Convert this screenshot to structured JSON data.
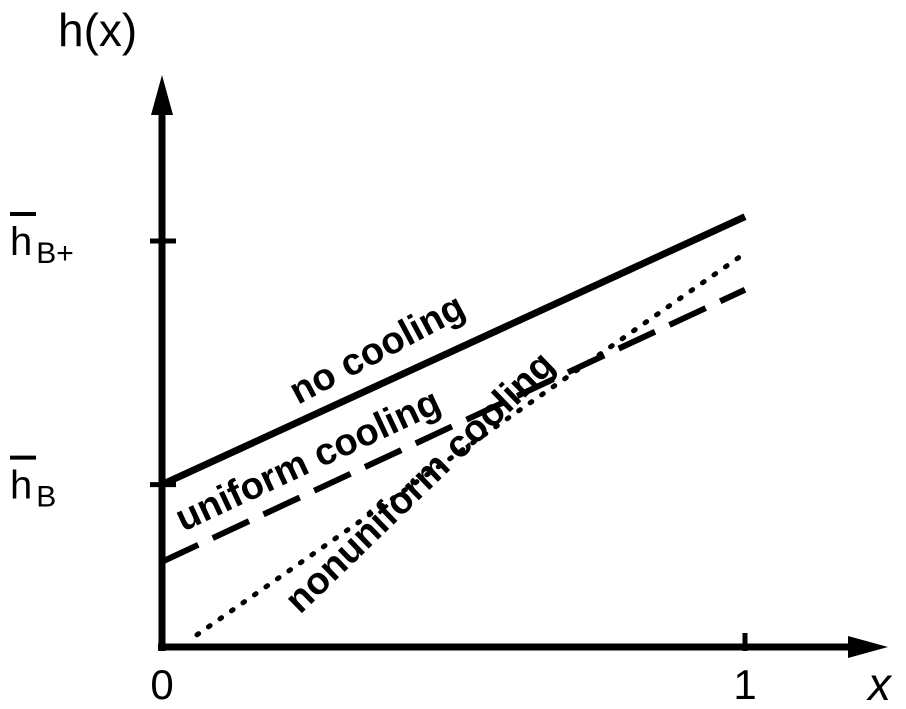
{
  "chart_data": {
    "type": "line",
    "ylabel": "h(x)",
    "xlabel": "x",
    "xlim": [
      0,
      1.2
    ],
    "ylim": [
      0,
      1.2
    ],
    "x_ticks": [
      {
        "value": 0,
        "label": "0"
      },
      {
        "value": 1,
        "label": "1"
      }
    ],
    "y_ticks": [
      {
        "value": 0.4,
        "main": "h",
        "sub": "B"
      },
      {
        "value": 1.0,
        "main": "h",
        "sub": "B+"
      }
    ],
    "series": [
      {
        "name": "no cooling",
        "style": "solid",
        "x": [
          0,
          1
        ],
        "y": [
          0.4,
          1.06
        ]
      },
      {
        "name": "uniform cooling",
        "style": "dashed",
        "x": [
          0,
          1
        ],
        "y": [
          0.21,
          0.88
        ]
      },
      {
        "name": "nonuniform cooling",
        "style": "dotted",
        "x": [
          0.06,
          1
        ],
        "y": [
          0.03,
          0.97
        ]
      }
    ],
    "grid": false,
    "legend": "none"
  }
}
